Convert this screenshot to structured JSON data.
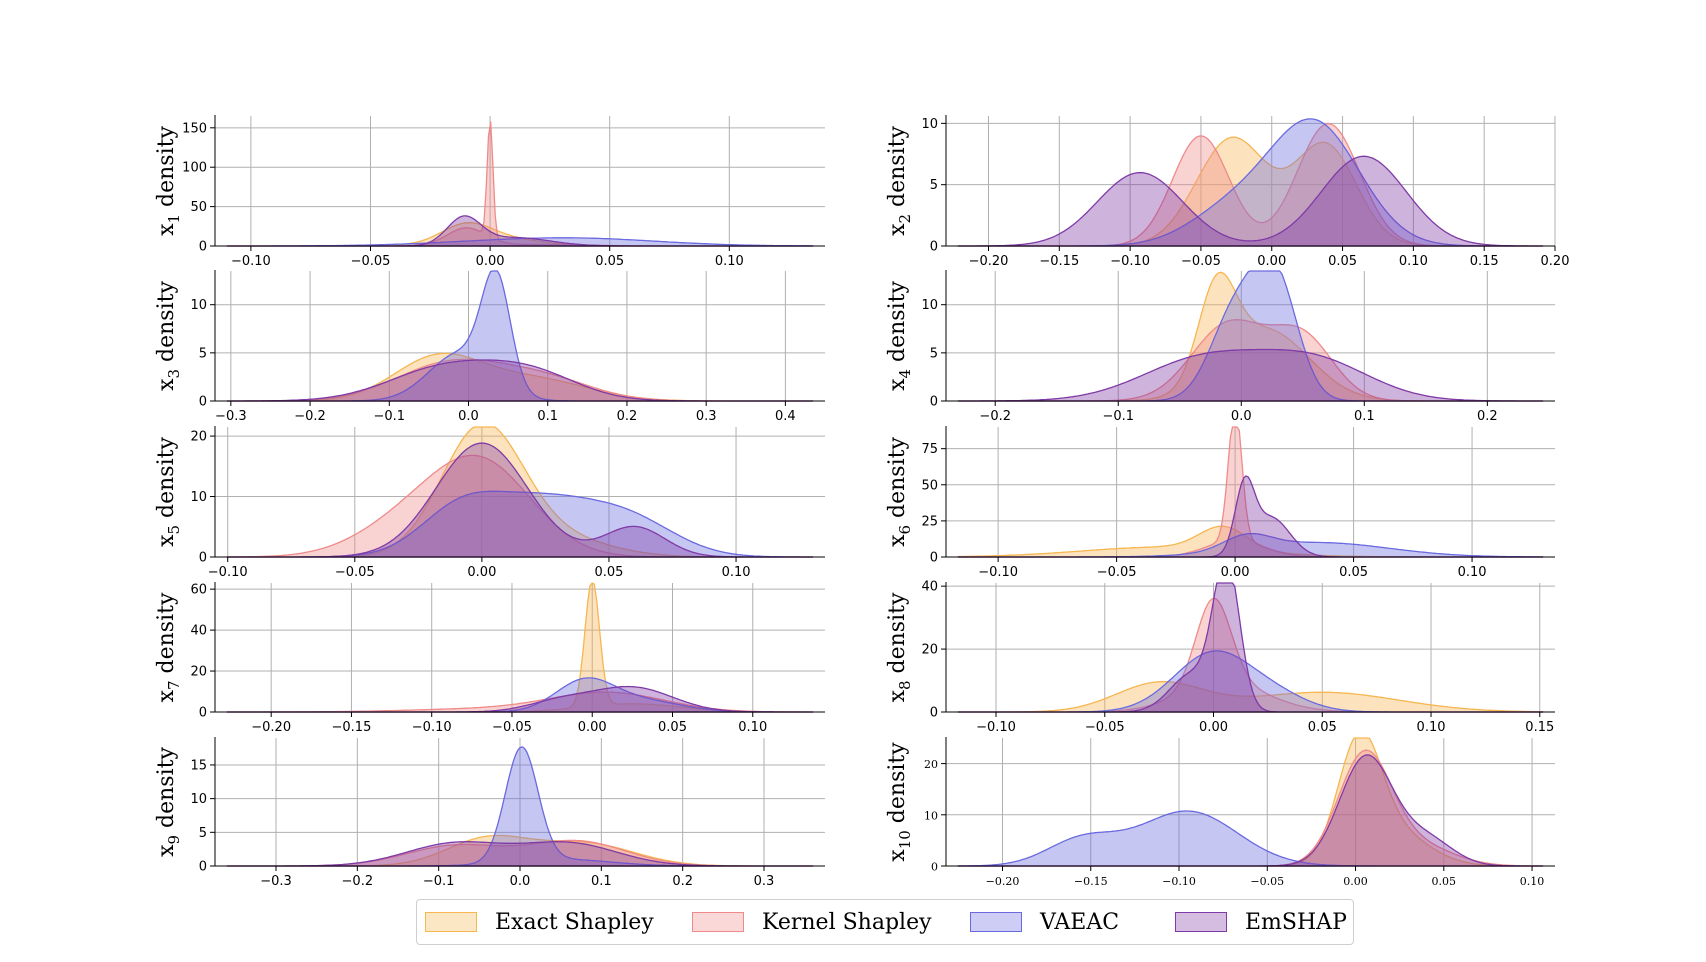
{
  "chart_data": {
    "type": "area",
    "legend": {
      "placement": "bottom-center",
      "entries": [
        {
          "name": "Exact Shapley",
          "color": "#f6b651"
        },
        {
          "name": "Kernel Shapley",
          "color": "#f08a8a"
        },
        {
          "name": "VAEAC",
          "color": "#6a6ae0"
        },
        {
          "name": "EmSHAP",
          "color": "#7f3aa6"
        }
      ]
    },
    "panels": [
      {
        "name": "x1",
        "ylabel": "x",
        "ylabel_sub": "1",
        "ylabel_suffix": " density",
        "xlim": [
          -0.115,
          0.14
        ],
        "ylim": [
          0,
          165
        ],
        "xticks": [
          -0.1,
          -0.05,
          0.0,
          0.05,
          0.1
        ],
        "xtick_labels": [
          "−0.10",
          "−0.05",
          "0.00",
          "0.05",
          "0.10"
        ],
        "yticks": [
          0,
          50,
          100,
          150
        ],
        "ytick_labels": [
          "0",
          "50",
          "100",
          "150"
        ],
        "series": [
          {
            "name": "Exact Shapley",
            "comps": [
              [
                0.0,
                0.018,
                0.5
              ],
              [
                -0.01,
                0.01,
                0.5
              ]
            ]
          },
          {
            "name": "Kernel Shapley",
            "comps": [
              [
                0.0,
                0.0012,
                0.45
              ],
              [
                -0.01,
                0.008,
                0.45
              ],
              [
                0.02,
                0.02,
                0.1
              ]
            ]
          },
          {
            "name": "VAEAC",
            "comps": [
              [
                0.035,
                0.035,
                0.85
              ],
              [
                -0.01,
                0.03,
                0.15
              ]
            ]
          },
          {
            "name": "EmSHAP",
            "comps": [
              [
                -0.011,
                0.007,
                0.6
              ],
              [
                0.01,
                0.015,
                0.4
              ]
            ]
          }
        ]
      },
      {
        "name": "x2",
        "ylabel": "x",
        "ylabel_sub": "2",
        "ylabel_suffix": " density",
        "xlim": [
          -0.23,
          0.2
        ],
        "ylim": [
          0,
          10.6
        ],
        "xticks": [
          -0.2,
          -0.15,
          -0.1,
          -0.05,
          0.0,
          0.05,
          0.1,
          0.15,
          0.2
        ],
        "xtick_labels": [
          "−0.20",
          "−0.15",
          "−0.10",
          "−0.05",
          "0.00",
          "0.05",
          "0.10",
          "0.15",
          "0.20"
        ],
        "yticks": [
          0,
          5,
          10
        ],
        "ytick_labels": [
          "0",
          "5",
          "10"
        ],
        "series": [
          {
            "name": "Exact Shapley",
            "comps": [
              [
                -0.028,
                0.025,
                0.55
              ],
              [
                0.038,
                0.022,
                0.45
              ]
            ]
          },
          {
            "name": "Kernel Shapley",
            "comps": [
              [
                -0.05,
                0.02,
                0.45
              ],
              [
                0.04,
                0.022,
                0.55
              ]
            ]
          },
          {
            "name": "VAEAC",
            "comps": [
              [
                0.03,
                0.032,
                0.8
              ],
              [
                -0.03,
                0.03,
                0.2
              ]
            ]
          },
          {
            "name": "EmSHAP",
            "comps": [
              [
                -0.093,
                0.03,
                0.45
              ],
              [
                0.065,
                0.03,
                0.55
              ]
            ]
          }
        ]
      },
      {
        "name": "x3",
        "ylabel": "x",
        "ylabel_sub": "3",
        "ylabel_suffix": " density",
        "xlim": [
          -0.32,
          0.45
        ],
        "ylim": [
          0,
          13.5
        ],
        "xticks": [
          -0.3,
          -0.2,
          -0.1,
          0.0,
          0.1,
          0.2,
          0.3,
          0.4
        ],
        "xtick_labels": [
          "−0.3",
          "−0.2",
          "−0.1",
          "0.0",
          "0.1",
          "0.2",
          "0.3",
          "0.4"
        ],
        "yticks": [
          0,
          5,
          10
        ],
        "ytick_labels": [
          "0",
          "5",
          "10"
        ],
        "series": [
          {
            "name": "Exact Shapley",
            "comps": [
              [
                -0.04,
                0.055,
                0.6
              ],
              [
                0.08,
                0.07,
                0.4
              ]
            ]
          },
          {
            "name": "Kernel Shapley",
            "comps": [
              [
                -0.02,
                0.07,
                0.7
              ],
              [
                0.1,
                0.06,
                0.3
              ]
            ]
          },
          {
            "name": "VAEAC",
            "comps": [
              [
                0.035,
                0.018,
                0.5
              ],
              [
                -0.01,
                0.04,
                0.5
              ]
            ]
          },
          {
            "name": "EmSHAP",
            "comps": [
              [
                -0.03,
                0.07,
                0.6
              ],
              [
                0.08,
                0.06,
                0.4
              ]
            ]
          }
        ]
      },
      {
        "name": "x4",
        "ylabel": "x",
        "ylabel_sub": "4",
        "ylabel_suffix": " density",
        "xlim": [
          -0.24,
          0.255
        ],
        "ylim": [
          0,
          13.5
        ],
        "xticks": [
          -0.2,
          -0.1,
          0.0,
          0.1,
          0.2
        ],
        "xtick_labels": [
          "−0.2",
          "−0.1",
          "0.0",
          "0.1",
          "0.2"
        ],
        "yticks": [
          0,
          5,
          10
        ],
        "ytick_labels": [
          "0",
          "5",
          "10"
        ],
        "series": [
          {
            "name": "Exact Shapley",
            "comps": [
              [
                -0.02,
                0.015,
                0.35
              ],
              [
                0.02,
                0.035,
                0.65
              ]
            ]
          },
          {
            "name": "Kernel Shapley",
            "comps": [
              [
                -0.01,
                0.03,
                0.6
              ],
              [
                0.05,
                0.025,
                0.4
              ]
            ]
          },
          {
            "name": "VAEAC",
            "comps": [
              [
                0.028,
                0.018,
                0.55
              ],
              [
                -0.005,
                0.02,
                0.45
              ]
            ]
          },
          {
            "name": "EmSHAP",
            "comps": [
              [
                -0.03,
                0.05,
                0.55
              ],
              [
                0.06,
                0.045,
                0.45
              ]
            ]
          }
        ]
      },
      {
        "name": "x5",
        "ylabel": "x",
        "ylabel_sub": "5",
        "ylabel_suffix": " density",
        "xlim": [
          -0.105,
          0.135
        ],
        "ylim": [
          0,
          21.5
        ],
        "xticks": [
          -0.1,
          -0.05,
          0.0,
          0.05,
          0.1
        ],
        "xtick_labels": [
          "−0.10",
          "−0.05",
          "0.00",
          "0.05",
          "0.10"
        ],
        "yticks": [
          0,
          10,
          20
        ],
        "ytick_labels": [
          "0",
          "10",
          "20"
        ],
        "series": [
          {
            "name": "Exact Shapley",
            "comps": [
              [
                0.0,
                0.016,
                0.85
              ],
              [
                0.03,
                0.02,
                0.15
              ]
            ]
          },
          {
            "name": "Kernel Shapley",
            "comps": [
              [
                0.0,
                0.02,
                0.75
              ],
              [
                -0.03,
                0.02,
                0.25
              ]
            ]
          },
          {
            "name": "VAEAC",
            "comps": [
              [
                0.022,
                0.025,
                0.6
              ],
              [
                0.06,
                0.018,
                0.2
              ],
              [
                -0.01,
                0.015,
                0.2
              ]
            ]
          },
          {
            "name": "EmSHAP",
            "comps": [
              [
                0.0,
                0.018,
                0.85
              ],
              [
                0.06,
                0.012,
                0.15
              ]
            ]
          }
        ]
      },
      {
        "name": "x6",
        "ylabel": "x",
        "ylabel_sub": "6",
        "ylabel_suffix": " density",
        "xlim": [
          -0.122,
          0.135
        ],
        "ylim": [
          0,
          90
        ],
        "xticks": [
          -0.1,
          -0.05,
          0.0,
          0.05,
          0.1
        ],
        "xtick_labels": [
          "−0.10",
          "−0.05",
          "0.00",
          "0.05",
          "0.10"
        ],
        "yticks": [
          0,
          25,
          50,
          75
        ],
        "ytick_labels": [
          "0",
          "25",
          "50",
          "75"
        ],
        "series": [
          {
            "name": "Exact Shapley",
            "comps": [
              [
                -0.005,
                0.01,
                0.4
              ],
              [
                -0.03,
                0.035,
                0.6
              ]
            ]
          },
          {
            "name": "Kernel Shapley",
            "comps": [
              [
                0.0,
                0.0028,
                0.65
              ],
              [
                0.0,
                0.012,
                0.35
              ]
            ]
          },
          {
            "name": "VAEAC",
            "comps": [
              [
                0.035,
                0.03,
                0.75
              ],
              [
                0.005,
                0.01,
                0.25
              ]
            ]
          },
          {
            "name": "EmSHAP",
            "comps": [
              [
                0.004,
                0.004,
                0.45
              ],
              [
                0.015,
                0.008,
                0.55
              ]
            ]
          }
        ]
      },
      {
        "name": "x7",
        "ylabel": "x",
        "ylabel_sub": "7",
        "ylabel_suffix": " density",
        "xlim": [
          -0.235,
          0.145
        ],
        "ylim": [
          0,
          63
        ],
        "xticks": [
          -0.2,
          -0.15,
          -0.1,
          -0.05,
          0.0,
          0.05,
          0.1
        ],
        "xtick_labels": [
          "−0.20",
          "−0.15",
          "−0.10",
          "−0.05",
          "0.00",
          "0.05",
          "0.10"
        ],
        "yticks": [
          0,
          20,
          40,
          60
        ],
        "ytick_labels": [
          "0",
          "20",
          "40",
          "60"
        ],
        "series": [
          {
            "name": "Exact Shapley",
            "comps": [
              [
                0.0,
                0.0045,
                0.7
              ],
              [
                0.025,
                0.03,
                0.3
              ]
            ]
          },
          {
            "name": "Kernel Shapley",
            "comps": [
              [
                0.01,
                0.035,
                0.8
              ],
              [
                -0.06,
                0.05,
                0.2
              ]
            ]
          },
          {
            "name": "VAEAC",
            "comps": [
              [
                -0.005,
                0.018,
                0.65
              ],
              [
                0.03,
                0.025,
                0.35
              ]
            ]
          },
          {
            "name": "EmSHAP",
            "comps": [
              [
                0.025,
                0.025,
                0.75
              ],
              [
                -0.02,
                0.02,
                0.25
              ]
            ]
          }
        ]
      },
      {
        "name": "x8",
        "ylabel": "x",
        "ylabel_sub": "8",
        "ylabel_suffix": " density",
        "xlim": [
          -0.123,
          0.157
        ],
        "ylim": [
          0,
          41
        ],
        "xticks": [
          -0.1,
          -0.05,
          0.0,
          0.05,
          0.1,
          0.15
        ],
        "xtick_labels": [
          "−0.10",
          "−0.05",
          "0.00",
          "0.05",
          "0.10",
          "0.15"
        ],
        "yticks": [
          0,
          20,
          40
        ],
        "ytick_labels": [
          "0",
          "20",
          "40"
        ],
        "series": [
          {
            "name": "Exact Shapley",
            "comps": [
              [
                -0.025,
                0.02,
                0.45
              ],
              [
                0.05,
                0.035,
                0.55
              ]
            ]
          },
          {
            "name": "Kernel Shapley",
            "comps": [
              [
                0.0,
                0.008,
                0.55
              ],
              [
                0.005,
                0.02,
                0.45
              ]
            ]
          },
          {
            "name": "VAEAC",
            "comps": [
              [
                0.0,
                0.018,
                0.85
              ],
              [
                0.03,
                0.015,
                0.15
              ]
            ]
          },
          {
            "name": "EmSHAP",
            "comps": [
              [
                0.006,
                0.006,
                0.7
              ],
              [
                -0.01,
                0.01,
                0.3
              ]
            ]
          }
        ]
      },
      {
        "name": "x9",
        "ylabel": "x",
        "ylabel_sub": "9",
        "ylabel_suffix": " density",
        "xlim": [
          -0.375,
          0.375
        ],
        "ylim": [
          0,
          19
        ],
        "xticks": [
          -0.3,
          -0.2,
          -0.1,
          0.0,
          0.1,
          0.2,
          0.3
        ],
        "xtick_labels": [
          "−0.3",
          "−0.2",
          "−0.1",
          "0.0",
          "0.1",
          "0.2",
          "0.3"
        ],
        "yticks": [
          0,
          5,
          10,
          15
        ],
        "ytick_labels": [
          "0",
          "5",
          "10",
          "15"
        ],
        "series": [
          {
            "name": "Exact Shapley",
            "comps": [
              [
                -0.04,
                0.05,
                0.5
              ],
              [
                0.08,
                0.06,
                0.5
              ]
            ]
          },
          {
            "name": "Kernel Shapley",
            "comps": [
              [
                0.07,
                0.06,
                0.55
              ],
              [
                -0.08,
                0.06,
                0.45
              ]
            ]
          },
          {
            "name": "VAEAC",
            "comps": [
              [
                0.002,
                0.02,
                0.85
              ],
              [
                0.05,
                0.06,
                0.15
              ]
            ]
          },
          {
            "name": "EmSHAP",
            "comps": [
              [
                -0.08,
                0.06,
                0.5
              ],
              [
                0.06,
                0.06,
                0.5
              ]
            ]
          }
        ]
      },
      {
        "name": "x10",
        "ylabel": "x",
        "ylabel_sub": "10",
        "ylabel_suffix": " density",
        "xlim": [
          -0.232,
          0.113
        ],
        "ylim": [
          0,
          25
        ],
        "xticks": [
          -0.2,
          -0.15,
          -0.1,
          -0.05,
          0.0,
          0.05,
          0.1
        ],
        "xtick_labels": [
          "−0.20",
          "−0.15",
          "−0.10",
          "−0.05",
          "0.00",
          "0.05",
          "0.10"
        ],
        "yticks": [
          0,
          10,
          20
        ],
        "ytick_labels": [
          "0",
          "10",
          "20"
        ],
        "serif_ticks": true,
        "series": [
          {
            "name": "Exact Shapley",
            "comps": [
              [
                0.002,
                0.012,
                0.65
              ],
              [
                0.02,
                0.02,
                0.35
              ]
            ]
          },
          {
            "name": "Kernel Shapley",
            "comps": [
              [
                0.005,
                0.015,
                0.8
              ],
              [
                0.035,
                0.02,
                0.2
              ]
            ]
          },
          {
            "name": "VAEAC",
            "comps": [
              [
                -0.095,
                0.028,
                0.75
              ],
              [
                -0.155,
                0.02,
                0.25
              ]
            ]
          },
          {
            "name": "EmSHAP",
            "comps": [
              [
                0.006,
                0.015,
                0.8
              ],
              [
                0.04,
                0.015,
                0.2
              ]
            ]
          }
        ]
      }
    ]
  }
}
